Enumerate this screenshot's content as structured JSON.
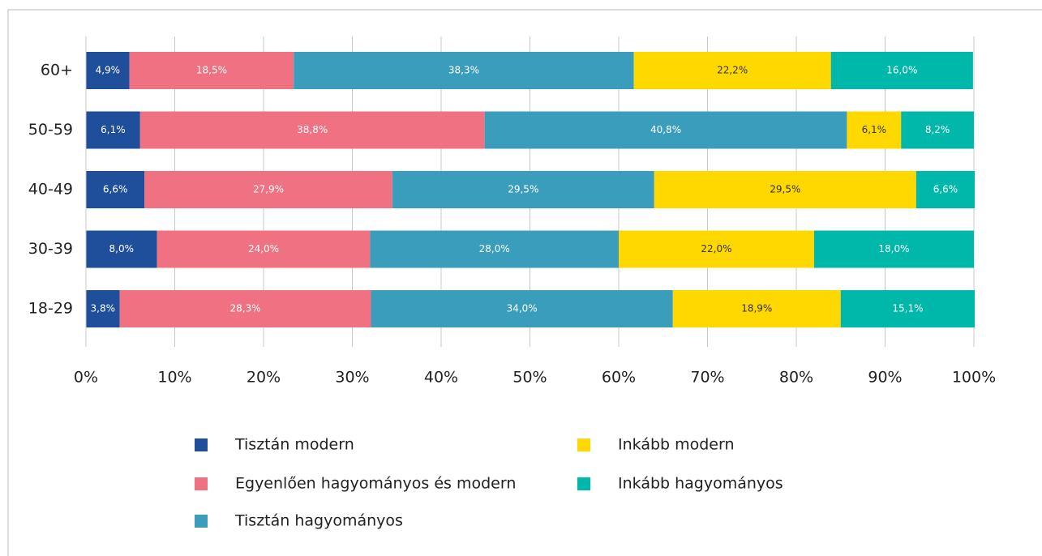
{
  "chart_data": {
    "type": "stacked-bar-horizontal",
    "categories": [
      "60+",
      "50-59",
      "40-49",
      "30-39",
      "18-29"
    ],
    "series": [
      {
        "name": "Tisztán modern",
        "color": "#1f4e9a",
        "values": [
          4.9,
          6.1,
          6.6,
          8.0,
          3.8
        ],
        "value_labels": [
          "4,9%",
          "6,1%",
          "6,6%",
          "8,0%",
          "3,8%"
        ]
      },
      {
        "name": "Egyenlően hagyományos és modern",
        "color": "#f07282",
        "values": [
          18.5,
          38.8,
          27.9,
          24.0,
          28.3
        ],
        "value_labels": [
          "18,5%",
          "38,8%",
          "27,9%",
          "24,0%",
          "28,3%"
        ]
      },
      {
        "name": "Tisztán hagyományos",
        "color": "#3a9dbb",
        "values": [
          38.3,
          40.8,
          29.5,
          28.0,
          34.0
        ],
        "value_labels": [
          "38,3%",
          "40,8%",
          "29,5%",
          "28,0%",
          "34,0%"
        ]
      },
      {
        "name": "Inkább modern",
        "color": "#ffd800",
        "values": [
          22.2,
          6.1,
          29.5,
          22.0,
          18.9
        ],
        "value_labels": [
          "22,2%",
          "6,1%",
          "29,5%",
          "22,0%",
          "18,9%"
        ]
      },
      {
        "name": "Inkább hagyományos",
        "color": "#00b8a9",
        "values": [
          16.0,
          8.2,
          6.6,
          18.0,
          15.1
        ],
        "value_labels": [
          "16,0%",
          "8,2%",
          "6,6%",
          "18,0%",
          "15,1%"
        ]
      }
    ],
    "xlim": [
      0,
      100
    ],
    "xticks": [
      {
        "value": 0,
        "label": "0%"
      },
      {
        "value": 10,
        "label": "10%"
      },
      {
        "value": 20,
        "label": "20%"
      },
      {
        "value": 30,
        "label": "30%"
      },
      {
        "value": 40,
        "label": "40%"
      },
      {
        "value": 50,
        "label": "50%"
      },
      {
        "value": 60,
        "label": "60%"
      },
      {
        "value": 70,
        "label": "70%"
      },
      {
        "value": 80,
        "label": "80%"
      },
      {
        "value": 90,
        "label": "90%"
      },
      {
        "value": 100,
        "label": "100%"
      }
    ],
    "grid": true
  }
}
